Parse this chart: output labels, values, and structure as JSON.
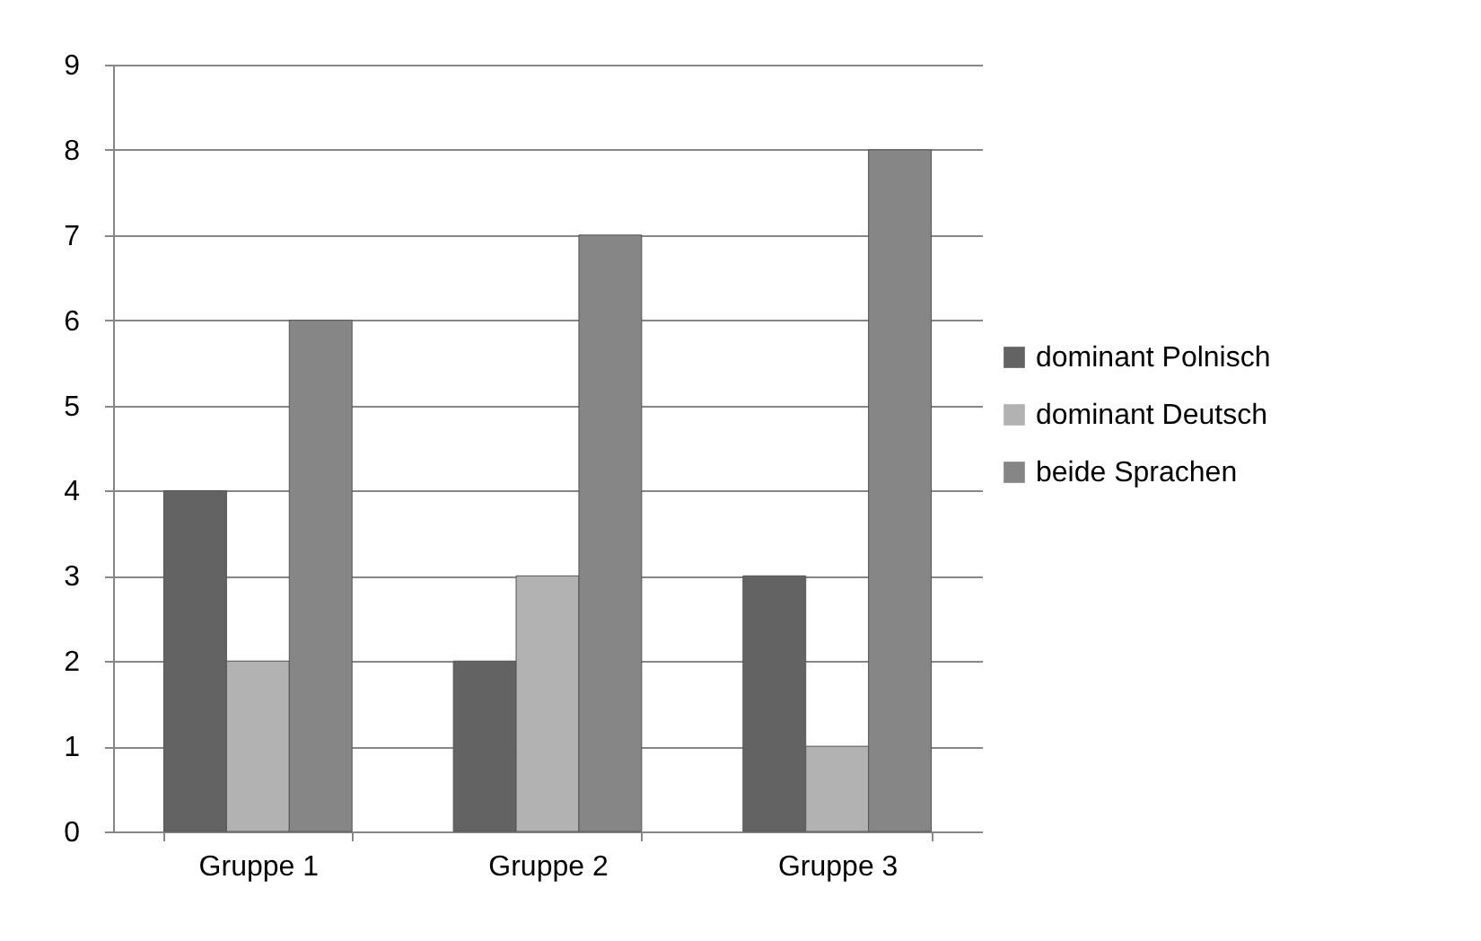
{
  "chart_data": {
    "type": "bar",
    "categories": [
      "Gruppe 1",
      "Gruppe 2",
      "Gruppe 3"
    ],
    "series": [
      {
        "name": "dominant Polnisch",
        "color": "#636363",
        "values": [
          4,
          2,
          3
        ]
      },
      {
        "name": "dominant Deutsch",
        "color": "#b2b2b2",
        "values": [
          2,
          3,
          1
        ]
      },
      {
        "name": "beide Sprachen",
        "color": "#868686",
        "values": [
          6,
          7,
          8
        ]
      }
    ],
    "ylim": [
      0,
      9
    ],
    "yticks": [
      0,
      1,
      2,
      3,
      4,
      5,
      6,
      7,
      8,
      9
    ],
    "grid": "y",
    "legend": "right"
  }
}
